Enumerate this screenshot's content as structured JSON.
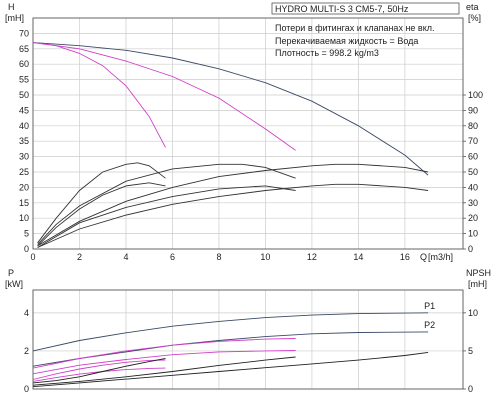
{
  "header": {
    "title": "HYDRO MULTI-S 3 CM5-7, 50Hz",
    "notes": [
      "Потери в фитингах и клапанах не вкл.",
      "Перекачиваемая жидкость = Вода",
      "Плотность = 998.2 kg/m3"
    ]
  },
  "colors": {
    "grid": "#cccccc",
    "frame": "#555555",
    "pump_curve": "#3a4a66",
    "power_curve": "#d040c8",
    "other_curve": "#222222"
  },
  "chart_data": [
    {
      "type": "line",
      "axes": {
        "left": {
          "label": "H",
          "unit": "[mH]",
          "ylim": [
            0,
            75
          ],
          "ticks": [
            0,
            5,
            10,
            15,
            20,
            25,
            30,
            35,
            40,
            45,
            50,
            55,
            60,
            65,
            70
          ]
        },
        "right": {
          "label": "eta",
          "unit": "[%]",
          "ylim": [
            0,
            150
          ],
          "ticks": [
            0,
            10,
            20,
            30,
            40,
            50,
            60,
            70,
            80,
            90,
            100
          ]
        },
        "x": {
          "label": "Q",
          "unit": "[m3/h]",
          "xlim": [
            0,
            18.5
          ],
          "ticks": [
            0,
            2,
            4,
            6,
            8,
            10,
            12,
            14,
            16
          ]
        }
      },
      "grid": true,
      "series": [
        {
          "color": "#3a4a66",
          "axis": "left",
          "x": [
            0,
            2,
            4,
            6,
            8,
            10,
            12,
            14,
            16,
            17
          ],
          "y": [
            67,
            66,
            64.5,
            62,
            58.5,
            54,
            48,
            40,
            30.5,
            24
          ]
        },
        {
          "color": "#d040c8",
          "axis": "left",
          "x": [
            0,
            1,
            2,
            3,
            4,
            5,
            5.7
          ],
          "y": [
            67,
            66,
            63.5,
            59.5,
            53,
            43,
            33
          ]
        },
        {
          "color": "#d040c8",
          "axis": "left",
          "x": [
            0,
            2,
            4,
            6,
            8,
            10,
            11.3
          ],
          "y": [
            67,
            65,
            61,
            56,
            49,
            39,
            32
          ]
        },
        {
          "color": "#333333",
          "axis": "right",
          "x": [
            0.2,
            1,
            2,
            3,
            4,
            4.5,
            5,
            5.7
          ],
          "y": [
            4,
            20,
            38,
            50,
            55,
            56,
            54,
            46
          ]
        },
        {
          "color": "#333333",
          "axis": "right",
          "x": [
            0.2,
            1,
            2,
            4,
            6,
            8,
            9,
            10,
            11.3
          ],
          "y": [
            3,
            16,
            28,
            44,
            52,
            55,
            55,
            53,
            46
          ]
        },
        {
          "color": "#333333",
          "axis": "right",
          "x": [
            0.2,
            2,
            4,
            6,
            8,
            10,
            12,
            13,
            14,
            16,
            17
          ],
          "y": [
            2,
            18,
            31,
            40,
            47,
            51,
            54,
            55,
            55,
            53,
            50
          ]
        },
        {
          "color": "#333333",
          "axis": "right",
          "x": [
            0.2,
            1,
            2,
            3,
            4,
            5,
            5.7
          ],
          "y": [
            2,
            14,
            26,
            35,
            41,
            43,
            41
          ]
        },
        {
          "color": "#333333",
          "axis": "right",
          "x": [
            0.2,
            2,
            4,
            6,
            8,
            10,
            11.3
          ],
          "y": [
            1,
            17,
            27,
            34,
            39,
            41,
            38
          ]
        },
        {
          "color": "#333333",
          "axis": "right",
          "x": [
            0.2,
            2,
            4,
            6,
            8,
            10,
            12,
            13,
            14,
            16,
            17
          ],
          "y": [
            1,
            13,
            22,
            29,
            34,
            38,
            41,
            42,
            42,
            40,
            38
          ]
        }
      ]
    },
    {
      "type": "line",
      "axes": {
        "left": {
          "label": "P",
          "unit": "[kW]",
          "ylim": [
            0,
            5.2
          ],
          "ticks": [
            0,
            2,
            4
          ]
        },
        "right": {
          "label": "NPSH",
          "unit": "[mH]",
          "ylim": [
            0,
            13
          ],
          "ticks": [
            0,
            5,
            10
          ]
        },
        "x": {
          "xlim": [
            0,
            18.5
          ],
          "ticks": [
            0,
            2,
            4,
            6,
            8,
            10,
            12,
            14,
            16
          ]
        }
      },
      "grid": true,
      "series": [
        {
          "name": "P1",
          "color": "#3a4a66",
          "axis": "left",
          "x": [
            0,
            2,
            4,
            6,
            8,
            10,
            12,
            14,
            17
          ],
          "y": [
            2.0,
            2.55,
            2.95,
            3.3,
            3.55,
            3.75,
            3.88,
            3.96,
            4.0
          ]
        },
        {
          "name": "P2",
          "color": "#3a4a66",
          "axis": "left",
          "x": [
            0,
            2,
            4,
            6,
            8,
            10,
            12,
            14,
            17
          ],
          "y": [
            1.2,
            1.6,
            1.95,
            2.3,
            2.55,
            2.75,
            2.9,
            2.97,
            3.0
          ]
        },
        {
          "color": "#d040c8",
          "axis": "left",
          "x": [
            0,
            2,
            4,
            6,
            8,
            10,
            11.3
          ],
          "y": [
            1.1,
            1.6,
            2.0,
            2.3,
            2.5,
            2.62,
            2.65
          ]
        },
        {
          "color": "#d040c8",
          "axis": "left",
          "x": [
            0,
            2,
            4,
            6,
            8,
            10,
            11.3
          ],
          "y": [
            0.8,
            1.25,
            1.55,
            1.8,
            1.95,
            2.0,
            2.02
          ]
        },
        {
          "color": "#d040c8",
          "axis": "left",
          "x": [
            0,
            1,
            2,
            3,
            4,
            5,
            5.7
          ],
          "y": [
            0.5,
            0.8,
            1.05,
            1.25,
            1.4,
            1.5,
            1.52
          ]
        },
        {
          "color": "#d040c8",
          "axis": "left",
          "x": [
            0,
            1,
            2,
            3,
            4,
            5,
            5.7
          ],
          "y": [
            0.4,
            0.6,
            0.78,
            0.92,
            1.02,
            1.08,
            1.1
          ]
        },
        {
          "color": "#222222",
          "axis": "right",
          "x": [
            0,
            1,
            2,
            3,
            4,
            5,
            5.7
          ],
          "y": [
            0.8,
            1.1,
            1.6,
            2.3,
            3.0,
            3.6,
            4.0
          ]
        },
        {
          "color": "#222222",
          "axis": "right",
          "x": [
            0,
            2,
            4,
            6,
            8,
            10,
            11.3
          ],
          "y": [
            0.5,
            1.0,
            1.6,
            2.3,
            3.1,
            3.8,
            4.2
          ]
        },
        {
          "color": "#222222",
          "axis": "right",
          "x": [
            0,
            2,
            4,
            6,
            8,
            10,
            12,
            14,
            16,
            17
          ],
          "y": [
            0.3,
            0.8,
            1.3,
            1.8,
            2.3,
            2.8,
            3.3,
            3.8,
            4.4,
            4.8
          ]
        }
      ]
    }
  ]
}
